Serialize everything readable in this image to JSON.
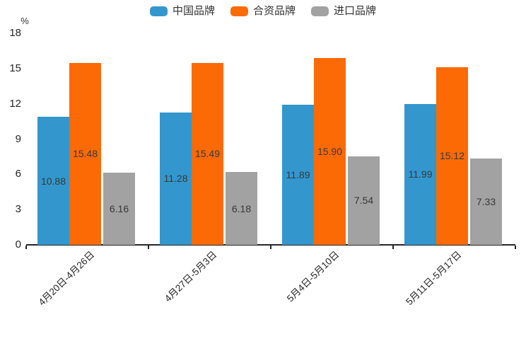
{
  "colors": {
    "background": "#ffffff",
    "axis": "#262626",
    "tick_text": "#262626",
    "value_label_text": "#383838",
    "legend_text": "#333333"
  },
  "chart_data": {
    "type": "bar",
    "title": "",
    "xlabel": "",
    "ylabel": "%",
    "ylim": [
      0,
      18
    ],
    "yticks": [
      0,
      3,
      6,
      9,
      12,
      15,
      18
    ],
    "grid": false,
    "legend_position": "top-center",
    "x_label_rotation_deg": -44,
    "categories": [
      "4月20日-4月26日",
      "4月27日-5月3日",
      "5月4日-5月10日",
      "5月11日-5月17日"
    ],
    "series": [
      {
        "name": "中国品牌",
        "color": "#3397CE",
        "values": [
          10.88,
          11.28,
          11.89,
          11.99
        ]
      },
      {
        "name": "合资品牌",
        "color": "#FC6A05",
        "values": [
          15.48,
          15.49,
          15.9,
          15.12
        ]
      },
      {
        "name": "进口品牌",
        "color": "#A2A2A2",
        "values": [
          6.16,
          6.18,
          7.54,
          7.33
        ]
      }
    ]
  }
}
